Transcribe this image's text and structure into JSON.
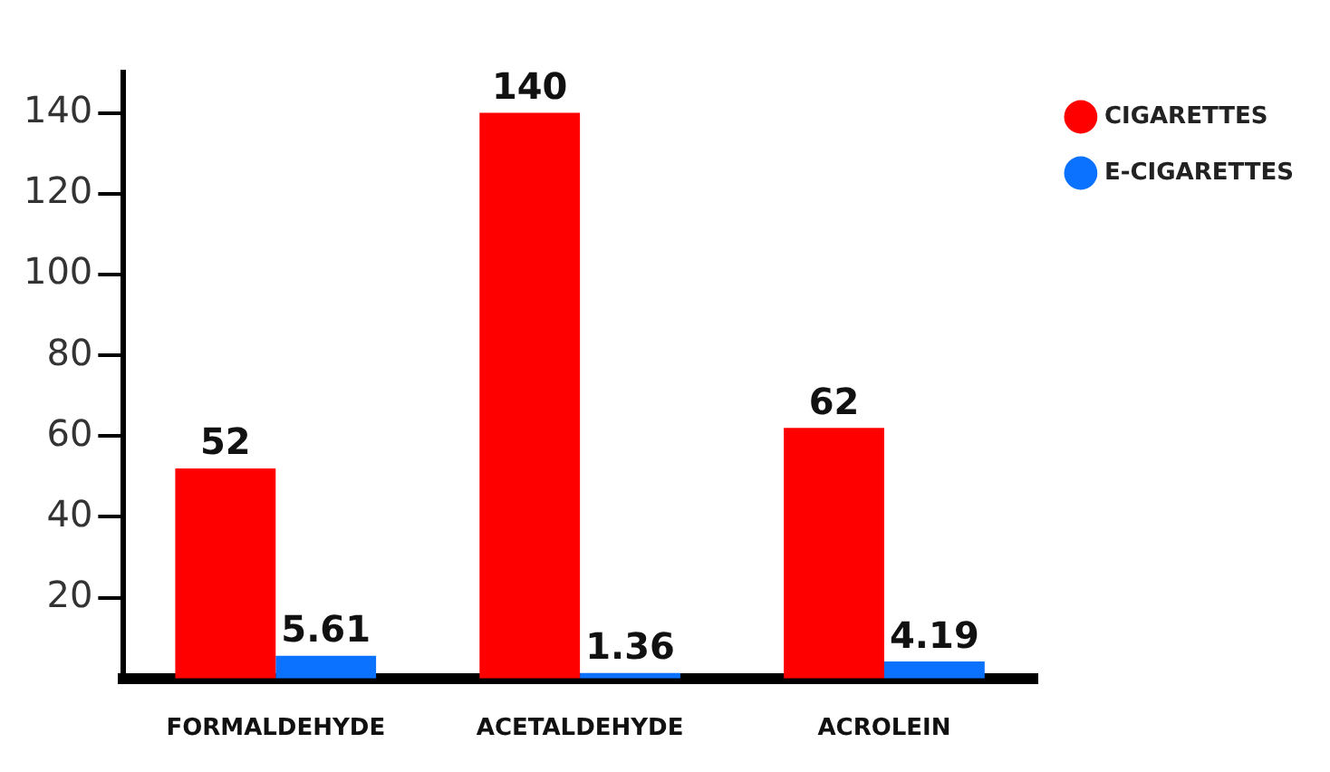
{
  "chart_data": {
    "type": "bar",
    "categories": [
      "FORMALDEHYDE",
      "ACETALDEHYDE",
      "ACROLEIN"
    ],
    "series": [
      {
        "name": "CIGARETTES",
        "color": "#ff0000",
        "values": [
          52,
          140,
          62
        ]
      },
      {
        "name": "E-CIGARETTES",
        "color": "#0a72ff",
        "values": [
          5.61,
          1.36,
          4.19
        ]
      }
    ],
    "ylim": [
      0,
      150
    ],
    "yticks": [
      20,
      40,
      60,
      80,
      100,
      120,
      140
    ],
    "grid": false,
    "legend": "top right",
    "data_labels": true
  }
}
